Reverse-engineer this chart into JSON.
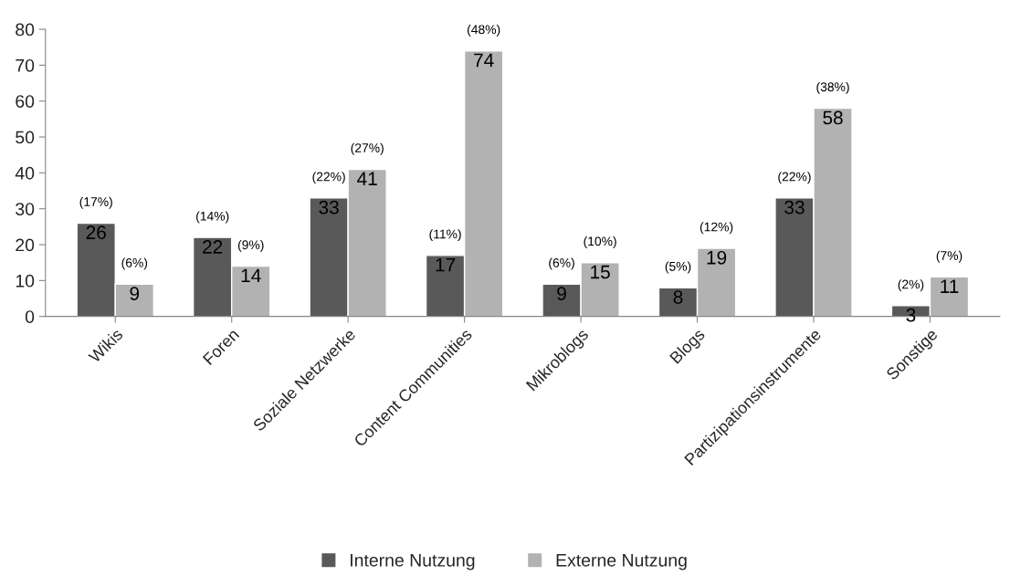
{
  "chart_data": {
    "type": "bar",
    "categories": [
      "Wikis",
      "Foren",
      "Soziale Netzwerke",
      "Content Communities",
      "Mikroblogs",
      "Blogs",
      "Partizipationsinstrumente",
      "Sonstige"
    ],
    "series": [
      {
        "name": "Interne Nutzung",
        "color": "#595959",
        "values": [
          26,
          22,
          33,
          17,
          9,
          8,
          33,
          3
        ]
      },
      {
        "name": "Externe Nutzung",
        "color": "#b2b2b2",
        "values": [
          9,
          14,
          41,
          74,
          15,
          19,
          58,
          11
        ]
      }
    ],
    "annotations": [
      {
        "text": "(17%)",
        "x": "Wikis",
        "y": 26
      },
      {
        "text": "(6%)",
        "x": "Wikis",
        "y": 9
      },
      {
        "text": "(14%)",
        "x": "Foren",
        "y": 22
      },
      {
        "text": "(9%)",
        "x": "Foren",
        "y": 14
      },
      {
        "text": "(22%)",
        "x": "Soziale Netzwerke",
        "y": 33
      },
      {
        "text": "(27%)",
        "x": "Soziale Netzwerke",
        "y": 41
      },
      {
        "text": "(11%)",
        "x": "Content Communities",
        "y": 17
      },
      {
        "text": "(48%)",
        "x": "Content Communities",
        "y": 74
      },
      {
        "text": "(6%)",
        "x": "Mikroblogs",
        "y": 9
      },
      {
        "text": "(10%)",
        "x": "Mikroblogs",
        "y": 15
      },
      {
        "text": "(5%)",
        "x": "Blogs",
        "y": 8
      },
      {
        "text": "(12%)",
        "x": "Blogs",
        "y": 19
      },
      {
        "text": "(22%)",
        "x": "Partizipationsinstrumente",
        "y": 33
      },
      {
        "text": "(38%)",
        "x": "Partizipationsinstrumente",
        "y": 58
      },
      {
        "text": "(2%)",
        "x": "Sonstige",
        "y": 3
      },
      {
        "text": "(7%)",
        "x": "Sonstige",
        "y": 11
      }
    ],
    "ylim": [
      0,
      80
    ],
    "yticks": [
      0,
      10,
      20,
      30,
      40,
      50,
      60,
      70,
      80
    ],
    "data_labels": true,
    "grid": false,
    "legend": "bottom"
  }
}
